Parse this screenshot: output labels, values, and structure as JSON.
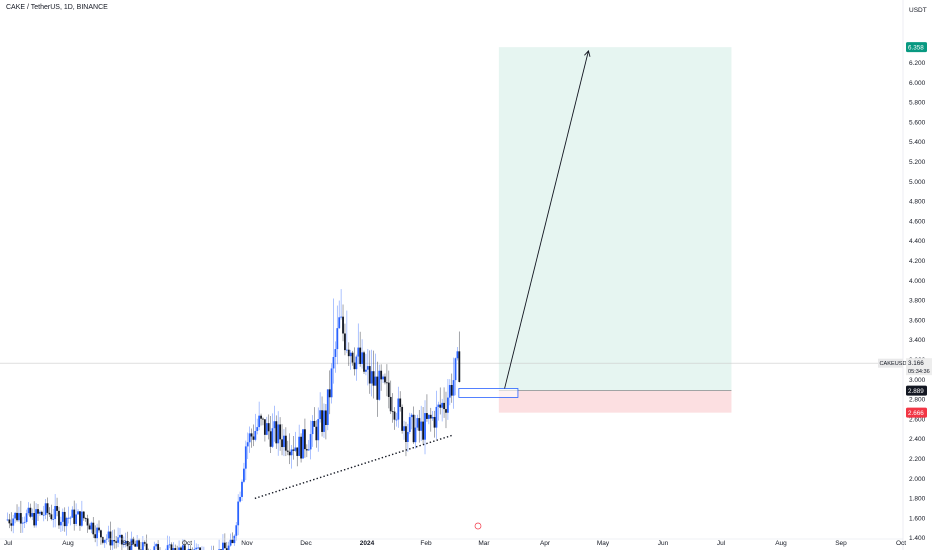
{
  "header": {
    "title": "CAKE / TetherUS, 1D, BINANCE"
  },
  "price_scale": {
    "unit": "USDT",
    "ticks": [
      "6.200",
      "6.000",
      "5.800",
      "5.600",
      "5.400",
      "5.200",
      "5.000",
      "4.800",
      "4.600",
      "4.400",
      "4.200",
      "4.000",
      "3.800",
      "3.600",
      "3.400",
      "3.200",
      "3.000",
      "2.800",
      "2.600",
      "2.400",
      "2.200",
      "2.000",
      "1.800",
      "1.600",
      "1.400"
    ],
    "tick_values": [
      6.2,
      6.0,
      5.8,
      5.6,
      5.4,
      5.2,
      5.0,
      4.8,
      4.6,
      4.4,
      4.2,
      4.0,
      3.8,
      3.6,
      3.4,
      3.2,
      3.0,
      2.8,
      2.6,
      2.4,
      2.2,
      2.0,
      1.8,
      1.6,
      1.4
    ],
    "labels": {
      "target": {
        "text": "6.358",
        "value": 6.358,
        "color": "#089981"
      },
      "symbol": {
        "text": "CAKEUSDT"
      },
      "last_price": {
        "text": "3.166",
        "value": 3.166
      },
      "countdown": {
        "text": "05:34:36"
      },
      "entry": {
        "text": "2.889",
        "value": 2.889,
        "color": "#131722"
      },
      "stop": {
        "text": "2.666",
        "value": 2.666,
        "color": "#f23645"
      }
    }
  },
  "time_axis": {
    "labels": [
      "Jul",
      "Aug",
      "Sep",
      "Oct",
      "Nov",
      "Dec",
      "2024",
      "Feb",
      "Mar",
      "Apr",
      "May",
      "Jun",
      "Jul",
      "Aug",
      "Sep",
      "Oct"
    ],
    "bold_label": "2024"
  },
  "colors": {
    "up": "#2962ff",
    "down": "#131722",
    "profit_zone": "#e6f5f1",
    "loss_zone": "#fcdfe1",
    "price_line": "#cccccc",
    "trendline": "#131722"
  },
  "chart_data": {
    "type": "candlestick",
    "title": "CAKE / TetherUS, 1D, BINANCE",
    "ylabel": "USDT",
    "ylim": [
      1.3,
      6.5
    ],
    "x_range": [
      "2023-07-01",
      "2024-10-01"
    ],
    "weekly_closes": [
      {
        "date": "2023-07-01",
        "close": 1.58
      },
      {
        "date": "2023-07-08",
        "close": 1.64
      },
      {
        "date": "2023-07-15",
        "close": 1.6
      },
      {
        "date": "2023-07-22",
        "close": 1.66
      },
      {
        "date": "2023-07-29",
        "close": 1.62
      },
      {
        "date": "2023-08-05",
        "close": 1.61
      },
      {
        "date": "2023-08-12",
        "close": 1.6
      },
      {
        "date": "2023-08-19",
        "close": 1.44
      },
      {
        "date": "2023-08-26",
        "close": 1.38
      },
      {
        "date": "2023-09-02",
        "close": 1.33
      },
      {
        "date": "2023-09-09",
        "close": 1.3
      },
      {
        "date": "2023-09-16",
        "close": 1.28
      },
      {
        "date": "2023-09-23",
        "close": 1.27
      },
      {
        "date": "2023-09-30",
        "close": 1.26
      },
      {
        "date": "2023-10-07",
        "close": 1.25
      },
      {
        "date": "2023-10-14",
        "close": 1.24
      },
      {
        "date": "2023-10-21",
        "close": 1.26
      },
      {
        "date": "2023-10-28",
        "close": 1.32
      },
      {
        "date": "2023-11-04",
        "close": 2.35
      },
      {
        "date": "2023-11-11",
        "close": 2.55
      },
      {
        "date": "2023-11-18",
        "close": 2.45
      },
      {
        "date": "2023-11-25",
        "close": 2.4
      },
      {
        "date": "2023-12-02",
        "close": 2.32
      },
      {
        "date": "2023-12-09",
        "close": 2.45
      },
      {
        "date": "2023-12-16",
        "close": 2.62
      },
      {
        "date": "2023-12-23",
        "close": 3.55
      },
      {
        "date": "2023-12-30",
        "close": 3.3
      },
      {
        "date": "2024-01-06",
        "close": 3.05
      },
      {
        "date": "2024-01-13",
        "close": 2.92
      },
      {
        "date": "2024-01-20",
        "close": 2.8
      },
      {
        "date": "2024-01-27",
        "close": 2.52
      },
      {
        "date": "2024-02-03",
        "close": 2.48
      },
      {
        "date": "2024-02-10",
        "close": 2.6
      },
      {
        "date": "2024-02-17",
        "close": 2.8
      },
      {
        "date": "2024-02-24",
        "close": 3.16
      }
    ],
    "annotations": {
      "long_position": {
        "entry": 2.889,
        "target": 6.358,
        "stop": 2.666,
        "start": "2024-03-15",
        "end": "2024-07-15"
      },
      "projection_arrow": {
        "from": [
          "2024-03-18",
          2.91
        ],
        "to": [
          "2024-05-01",
          6.32
        ]
      },
      "rising_trendline": {
        "from": [
          "2023-11-08",
          1.8
        ],
        "to": [
          "2024-02-20",
          2.44
        ]
      },
      "entry_box": {
        "from": "2024-02-23",
        "to": "2024-03-25",
        "top": 2.91,
        "bottom": 2.82
      }
    }
  }
}
